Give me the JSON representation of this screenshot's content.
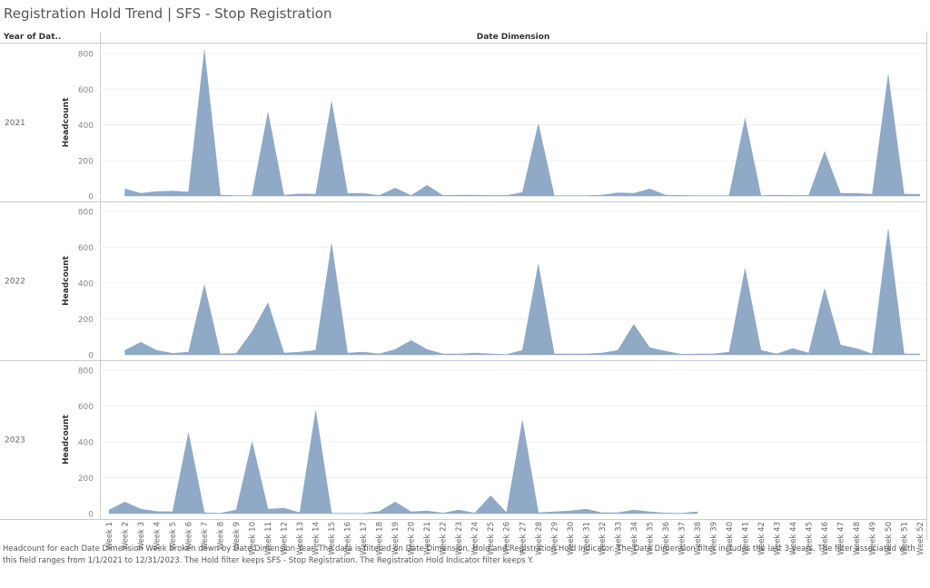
{
  "title": "Registration Hold Trend | SFS  - Stop Registration",
  "headers": {
    "year": "Year of Dat..",
    "column": "Date Dimension"
  },
  "footer": "Headcount for each Date Dimension Week broken down by Date Dimension Year. The data is filtered on Date Dimension, Hold and Registration Hold Indicator. The Date Dimension filter includes the last 3 years. The filter associated with this field ranges from 1/1/2021 to 12/31/2023. The Hold filter keeps SFS  - Stop Registration. The Registration Hold Indicator filter keeps Y.",
  "chart_data": {
    "type": "area",
    "fill_color": "#8fa9c6",
    "ylabel": "Headcount",
    "ylim": [
      0,
      800
    ],
    "yticks": [
      0,
      200,
      400,
      600,
      800
    ],
    "grid": true,
    "categories": [
      "Week 1",
      "Week 2",
      "Week 3",
      "Week 4",
      "Week 5",
      "Week 6",
      "Week 7",
      "Week 8",
      "Week 9",
      "Week 10",
      "Week 11",
      "Week 12",
      "Week 13",
      "Week 14",
      "Week 15",
      "Week 16",
      "Week 17",
      "Week 18",
      "Week 19",
      "Week 20",
      "Week 21",
      "Week 22",
      "Week 23",
      "Week 24",
      "Week 25",
      "Week 26",
      "Week 27",
      "Week 28",
      "Week 29",
      "Week 30",
      "Week 31",
      "Week 32",
      "Week 33",
      "Week 34",
      "Week 35",
      "Week 36",
      "Week 37",
      "Week 38",
      "Week 39",
      "Week 40",
      "Week 41",
      "Week 42",
      "Week 43",
      "Week 44",
      "Week 45",
      "Week 46",
      "Week 47",
      "Week 48",
      "Week 49",
      "Week 50",
      "Week 51",
      "Week 52"
    ],
    "panels": [
      {
        "year": "2021",
        "values": [
          null,
          40,
          15,
          25,
          28,
          22,
          820,
          5,
          2,
          2,
          470,
          5,
          12,
          10,
          530,
          15,
          15,
          3,
          45,
          3,
          60,
          3,
          5,
          5,
          3,
          3,
          20,
          405,
          2,
          2,
          2,
          5,
          18,
          15,
          40,
          5,
          3,
          2,
          2,
          2,
          435,
          2,
          5,
          3,
          3,
          250,
          15,
          15,
          10,
          680,
          10,
          10
        ]
      },
      {
        "year": "2022",
        "values": [
          null,
          25,
          70,
          25,
          8,
          15,
          390,
          5,
          8,
          130,
          290,
          10,
          15,
          25,
          620,
          10,
          15,
          5,
          30,
          80,
          30,
          5,
          5,
          10,
          5,
          2,
          25,
          505,
          5,
          5,
          5,
          10,
          25,
          170,
          40,
          20,
          3,
          5,
          5,
          15,
          480,
          25,
          5,
          35,
          10,
          370,
          55,
          35,
          5,
          700,
          5,
          5
        ]
      },
      {
        "year": "2023",
        "values": [
          20,
          65,
          25,
          12,
          10,
          450,
          5,
          2,
          20,
          400,
          25,
          30,
          5,
          575,
          2,
          2,
          2,
          12,
          65,
          10,
          15,
          3,
          20,
          3,
          100,
          5,
          520,
          5,
          10,
          15,
          25,
          5,
          5,
          20,
          10,
          3,
          2,
          10,
          null,
          null,
          null,
          null,
          null,
          null,
          null,
          null,
          null,
          null,
          null,
          null,
          null,
          null
        ]
      }
    ]
  }
}
